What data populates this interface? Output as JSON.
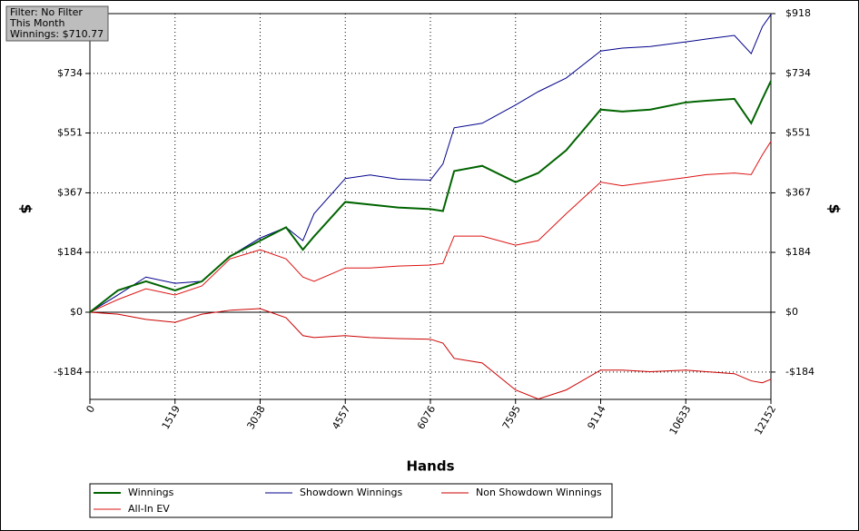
{
  "filter_box": {
    "lines": [
      "Filter: No Filter",
      "This Month",
      "Winnings: $710.77"
    ]
  },
  "chart_data": {
    "type": "line",
    "x_label": "Hands",
    "y_label": "$",
    "y2_label": "$",
    "x": [
      0,
      500,
      1000,
      1519,
      2000,
      2500,
      3038,
      3500,
      3800,
      4000,
      4557,
      5000,
      5500,
      6076,
      6300,
      6500,
      7000,
      7595,
      8000,
      8500,
      9114,
      9500,
      10000,
      10633,
      11000,
      11500,
      11800,
      12000,
      12152
    ],
    "series": [
      {
        "name": "Winnings",
        "color": "#006400",
        "values": [
          0,
          67,
          95,
          67,
          95,
          172,
          220,
          261,
          192,
          233,
          339,
          331,
          322,
          317,
          311,
          434,
          450,
          400,
          428,
          498,
          623,
          617,
          623,
          645,
          650,
          656,
          581,
          656,
          711
        ]
      },
      {
        "name": "Showdown Winnings",
        "color": "#00008b",
        "values": [
          0,
          53,
          108,
          89,
          95,
          172,
          228,
          261,
          220,
          303,
          411,
          422,
          409,
          406,
          456,
          567,
          581,
          637,
          678,
          720,
          803,
          812,
          817,
          831,
          840,
          851,
          795,
          878,
          915
        ]
      },
      {
        "name": "Non Showdown Winnings",
        "color": "#cc0000",
        "values": [
          0,
          -6,
          -22,
          -31,
          -6,
          6,
          11,
          -17,
          -72,
          -78,
          -72,
          -78,
          -81,
          -83,
          -95,
          -142,
          -156,
          -239,
          -267,
          -239,
          -178,
          -178,
          -183,
          -178,
          -183,
          -189,
          -211,
          -217,
          -206
        ]
      },
      {
        "name": "All-In EV",
        "color": "#dd1111",
        "values": [
          0,
          39,
          72,
          53,
          81,
          164,
          192,
          164,
          108,
          95,
          136,
          136,
          142,
          145,
          150,
          234,
          234,
          206,
          220,
          303,
          400,
          389,
          400,
          414,
          423,
          428,
          423,
          484,
          525
        ]
      }
    ],
    "xlim": [
      0,
      12152
    ],
    "xticks": [
      0,
      1519,
      3038,
      4557,
      6076,
      7595,
      9114,
      10633,
      12152
    ],
    "ylim": [
      -268,
      918
    ],
    "yticks": [
      {
        "value": -184,
        "label": "-$184"
      },
      {
        "value": 0,
        "label": "$0"
      },
      {
        "value": 184,
        "label": "$184"
      },
      {
        "value": 367,
        "label": "$367"
      },
      {
        "value": 551,
        "label": "$551"
      },
      {
        "value": 734,
        "label": "$734"
      },
      {
        "value": 918,
        "label": "$918"
      }
    ],
    "grid": true
  }
}
